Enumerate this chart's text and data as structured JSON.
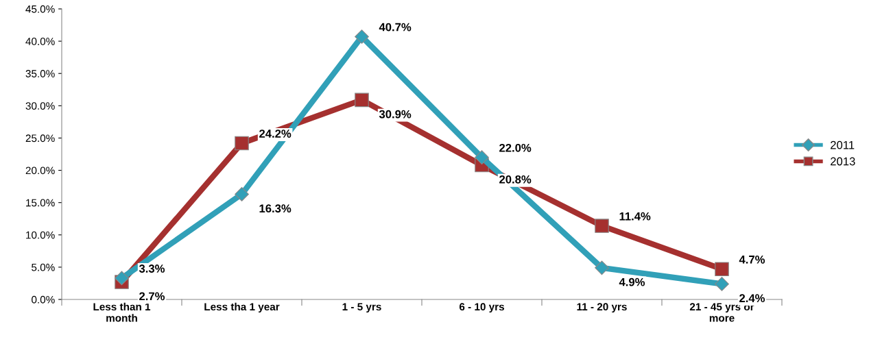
{
  "chart_data": {
    "type": "line",
    "categories": [
      "Less than 1\nmonth",
      "Less tha 1 year",
      "1 - 5 yrs",
      "6 - 10 yrs",
      "11 - 20 yrs",
      "21 - 45 yrs or\nmore"
    ],
    "series": [
      {
        "name": "2011",
        "color": "#31a0b8",
        "marker": "diamond",
        "values": [
          3.3,
          16.3,
          40.7,
          22.0,
          4.9,
          2.4
        ],
        "value_labels": [
          "3.3%",
          "16.3%",
          "40.7%",
          "22.0%",
          "4.9%",
          "2.4%"
        ]
      },
      {
        "name": "2013",
        "color": "#a5302f",
        "marker": "square",
        "values": [
          2.7,
          24.2,
          30.9,
          20.8,
          11.4,
          4.7
        ],
        "value_labels": [
          "2.7%",
          "24.2%",
          "30.9%",
          "20.8%",
          "11.4%",
          "4.7%"
        ]
      }
    ],
    "ylim": [
      0,
      45
    ],
    "yticks": [
      {
        "value": 0,
        "label": "0.0%"
      },
      {
        "value": 5,
        "label": "5.0%"
      },
      {
        "value": 10,
        "label": "10.0%"
      },
      {
        "value": 15,
        "label": "15.0%"
      },
      {
        "value": 20,
        "label": "20.0%"
      },
      {
        "value": 25,
        "label": "25.0%"
      },
      {
        "value": 30,
        "label": "30.0%"
      },
      {
        "value": 35,
        "label": "35.0%"
      },
      {
        "value": 40,
        "label": "40.0%"
      },
      {
        "value": 45,
        "label": "45.0%"
      }
    ],
    "grid": false,
    "legend": "right",
    "line_style": "solid"
  }
}
